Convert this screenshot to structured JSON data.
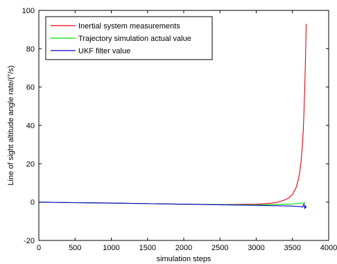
{
  "chart_data": {
    "type": "line",
    "xlabel": "simulation steps",
    "ylabel": "Line of sight altitude angle rate/(°/s)",
    "xlim": [
      0,
      4000
    ],
    "ylim": [
      -20,
      100
    ],
    "xticks": [
      "0",
      "500",
      "1000",
      "1500",
      "2000",
      "2500",
      "3000",
      "3500",
      "4000"
    ],
    "yticks": [
      "-20",
      "0",
      "20",
      "40",
      "60",
      "80",
      "100"
    ],
    "grid": false,
    "legend_position": "top-left",
    "series": [
      {
        "name": "Inertial system measurements",
        "color": "#e8000b",
        "x": [
          0,
          500,
          1000,
          1500,
          2000,
          2500,
          3000,
          3200,
          3300,
          3400,
          3450,
          3500,
          3550,
          3580,
          3600,
          3620,
          3640,
          3650,
          3660,
          3670,
          3680,
          3690
        ],
        "y": [
          0,
          -0.3,
          -0.5,
          -0.8,
          -1.1,
          -1.3,
          -1.1,
          -0.6,
          0.0,
          1.2,
          2.2,
          4.0,
          7.5,
          11.5,
          15.5,
          21.5,
          31,
          38,
          48,
          60,
          75,
          93
        ]
      },
      {
        "name": "Trajectory simulation actual value",
        "color": "#00e000",
        "x": [
          0,
          500,
          1000,
          1500,
          2000,
          2500,
          3000,
          3500,
          3680
        ],
        "y": [
          0,
          -0.3,
          -0.5,
          -0.8,
          -1.1,
          -1.3,
          -1.5,
          -1.0,
          -0.3
        ]
      },
      {
        "name": "UKF filter value",
        "color": "#0000cc",
        "x": [
          0,
          500,
          1000,
          1500,
          2000,
          2500,
          3000,
          3200,
          3400,
          3500,
          3600,
          3640,
          3660,
          3670,
          3680,
          3690
        ],
        "y": [
          0,
          -0.3,
          -0.5,
          -0.8,
          -1.1,
          -1.4,
          -1.7,
          -1.8,
          -2.0,
          -2.1,
          -2.3,
          -2.6,
          -1.0,
          -3.5,
          -2.0,
          -3.0
        ]
      }
    ]
  }
}
